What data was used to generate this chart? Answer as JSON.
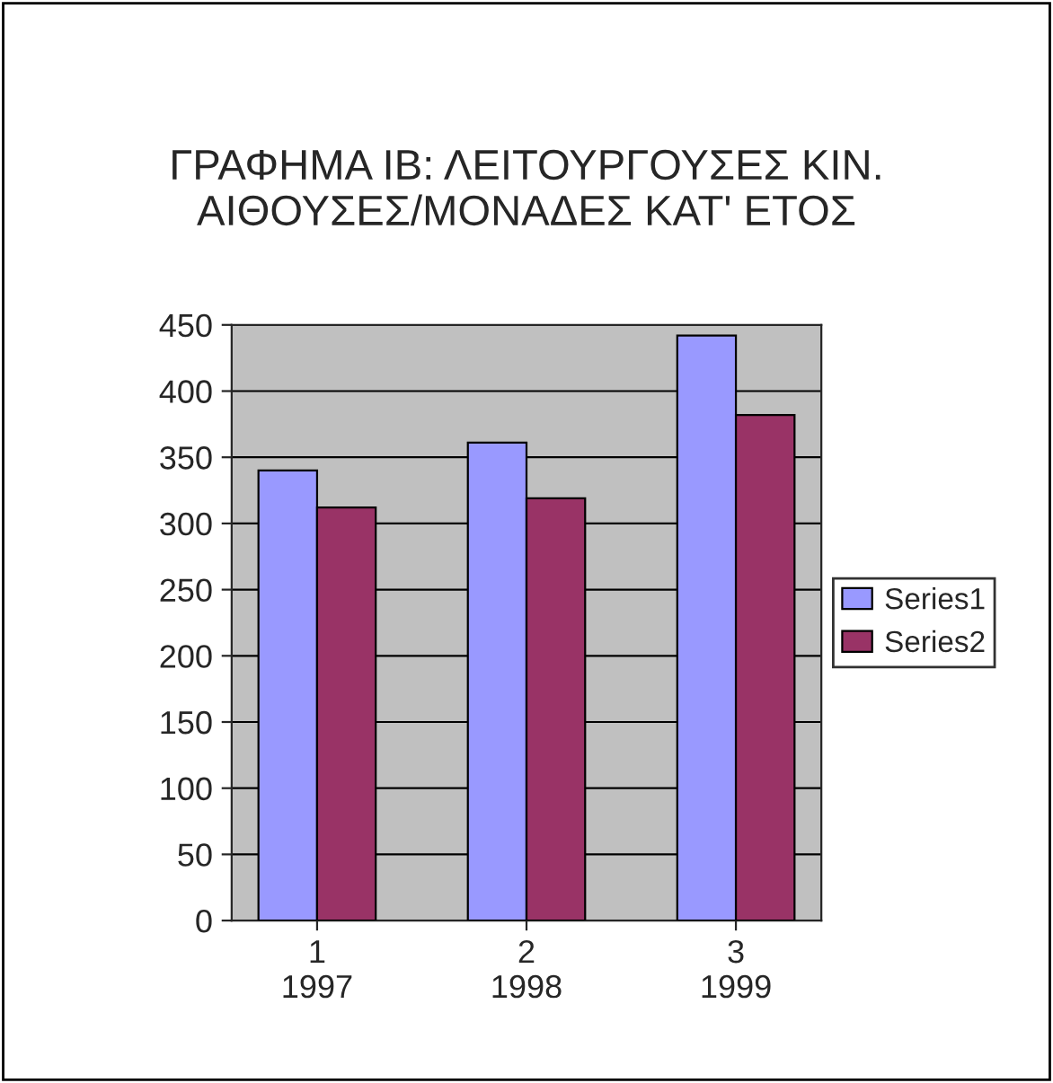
{
  "chart_data": {
    "type": "bar",
    "title": "ΓΡΑΦΗΜΑ ΙΒ: ΛΕΙΤΟΥΡΓΟΥΣΕΣ ΚΙΝ.\nΑΙΘΟΥΣΕΣ/ΜΟΝΑΔΕΣ ΚΑΤ' ΕΤΟΣ",
    "categories": [
      "1\n1997",
      "2\n1998",
      "3\n1999"
    ],
    "series": [
      {
        "name": "Series1",
        "color": "#9999ff",
        "values": [
          340,
          361,
          442
        ]
      },
      {
        "name": "Series2",
        "color": "#993366",
        "values": [
          312,
          319,
          382
        ]
      }
    ],
    "ylim": [
      0,
      450
    ],
    "yticks": [
      0,
      50,
      100,
      150,
      200,
      250,
      300,
      350,
      400,
      450
    ],
    "grid": "y",
    "legend": "right"
  }
}
